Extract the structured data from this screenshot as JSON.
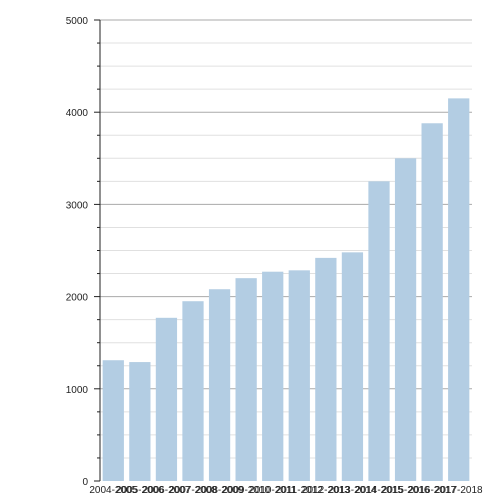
{
  "chart_data": {
    "type": "bar",
    "categories": [
      "2004-2005",
      "2005-2006",
      "2006-2007",
      "2007-2008",
      "2008-2009",
      "2009-2010",
      "2010-2011",
      "2011-2012",
      "2012-2013",
      "2013-2014",
      "2014-2015",
      "2015-2016",
      "2016-2017",
      "2017-2018"
    ],
    "values": [
      1310,
      1290,
      1770,
      1950,
      2080,
      2200,
      2270,
      2285,
      2420,
      2480,
      3250,
      3500,
      3880,
      4150
    ],
    "title": "",
    "xlabel": "",
    "ylabel": "",
    "ylim": [
      0,
      5000
    ],
    "yticks": [
      0,
      1000,
      2000,
      3000,
      4000,
      5000
    ],
    "grid": true,
    "legend": "none",
    "colors": {
      "bar": "#b3cde3",
      "grid_major": "#aaaaaa",
      "grid_minor": "#e0e0e0",
      "axis": "#222222"
    }
  }
}
